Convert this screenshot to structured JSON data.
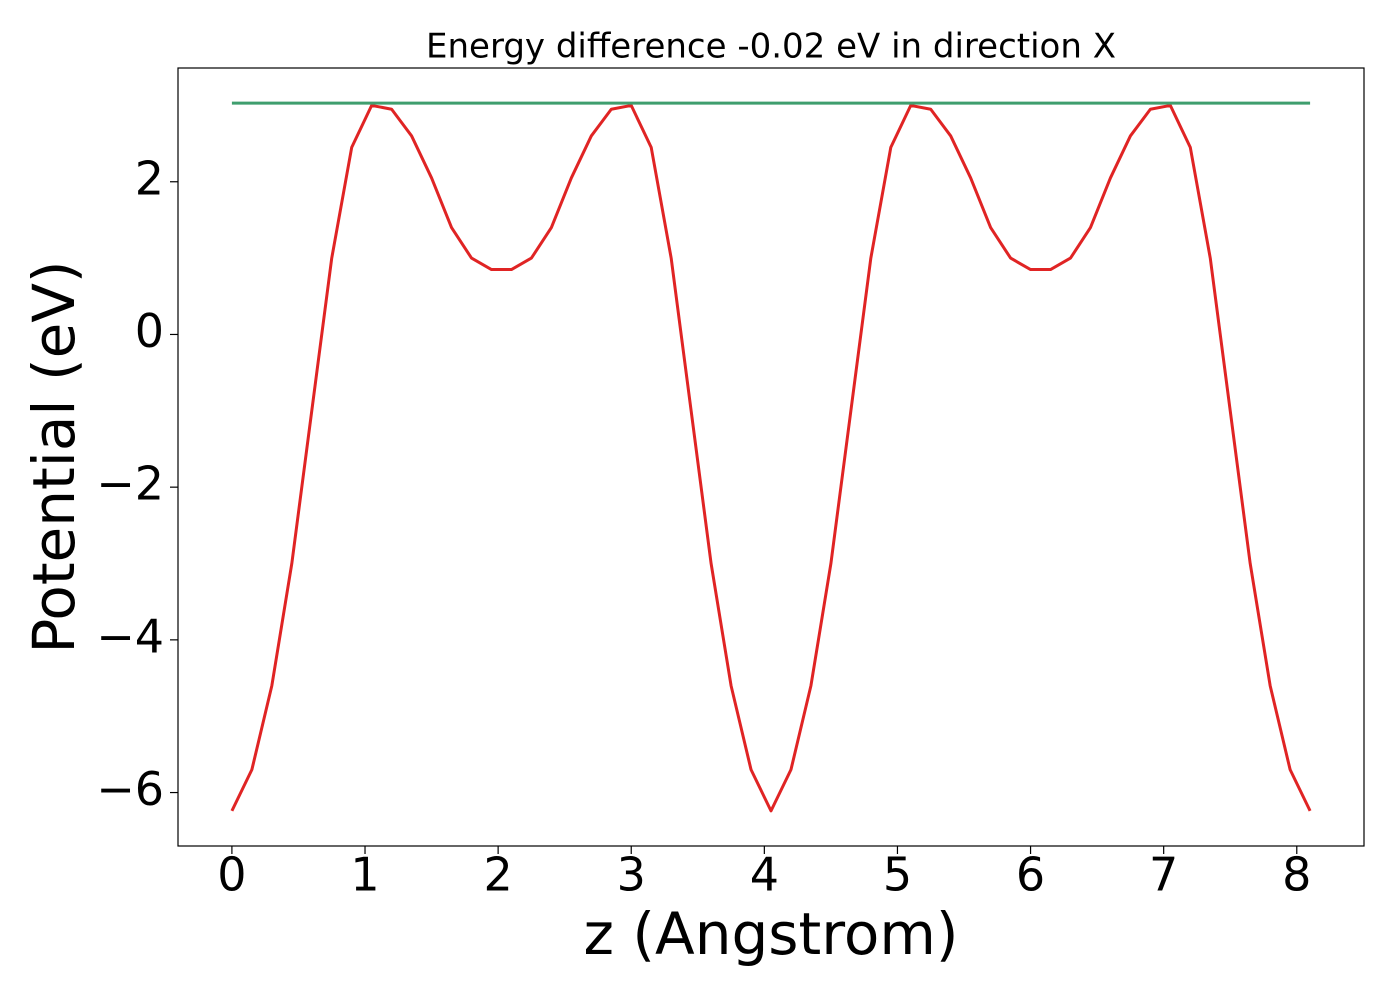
{
  "chart_data": {
    "type": "line",
    "title": "Energy difference -0.02 eV in direction X",
    "xlabel": "z (Angstrom)",
    "ylabel": "Potential (eV)",
    "series": [
      {
        "color": "#e02424",
        "x": [
          0,
          0.15,
          0.3,
          0.45,
          0.6,
          0.75,
          0.9,
          1.05,
          1.2,
          1.35,
          1.5,
          1.65,
          1.8,
          1.95,
          2.1,
          2.25,
          2.4,
          2.55,
          2.7,
          2.85,
          3.0,
          3.15,
          3.3,
          3.45,
          3.6,
          3.75,
          3.9,
          4.05,
          4.2,
          4.35,
          4.5,
          4.65,
          4.8,
          4.95,
          5.1,
          5.25,
          5.4,
          5.55,
          5.7,
          5.85,
          6.0,
          6.15,
          6.3,
          6.45,
          6.6,
          6.75,
          6.9,
          7.05,
          7.2,
          7.35,
          7.5,
          7.65,
          7.8,
          7.95,
          8.1
        ],
        "values": [
          -6.24,
          -5.7,
          -4.6,
          -3.0,
          -1.0,
          1.0,
          2.45,
          3.0,
          2.95,
          2.6,
          2.05,
          1.4,
          1.0,
          0.85,
          0.85,
          1.0,
          1.4,
          2.05,
          2.6,
          2.95,
          3.0,
          2.45,
          1.0,
          -1.0,
          -3.0,
          -4.6,
          -5.7,
          -6.24,
          -5.7,
          -4.6,
          -3.0,
          -1.0,
          1.0,
          2.45,
          3.0,
          2.95,
          2.6,
          2.05,
          1.4,
          1.0,
          0.85,
          0.85,
          1.0,
          1.4,
          2.05,
          2.6,
          2.95,
          3.0,
          2.45,
          1.0,
          -1.0,
          -3.0,
          -4.6,
          -5.7,
          -6.24
        ]
      },
      {
        "color": "#3f9e6e",
        "x": [
          0,
          8.1
        ],
        "values": [
          3.03,
          3.03
        ]
      }
    ],
    "xlim": [
      -0.405,
      8.505
    ],
    "xticks": [
      0,
      1,
      2,
      3,
      4,
      5,
      6,
      7,
      8
    ],
    "ylim": [
      -6.7,
      3.49
    ],
    "yticks": [
      {
        "value": -6,
        "label": "−6"
      },
      {
        "value": -4,
        "label": "−4"
      },
      {
        "value": -2,
        "label": "−2"
      },
      0,
      2
    ]
  }
}
